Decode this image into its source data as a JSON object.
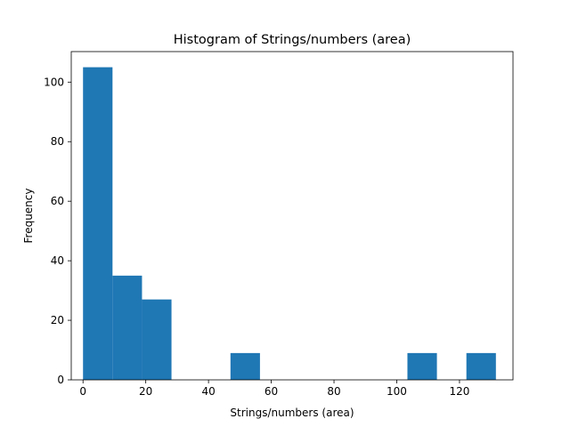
{
  "chart_data": {
    "type": "bar",
    "title": "Histogram of Strings/numbers (area)",
    "xlabel": "Strings/numbers (area)",
    "ylabel": "Frequency",
    "bar_color": "#1f77b4",
    "xlim": [
      -3.75,
      137.05
    ],
    "ylim": [
      0,
      110.25
    ],
    "xticks": [
      0,
      20,
      40,
      60,
      80,
      100,
      120
    ],
    "yticks": [
      0,
      20,
      40,
      60,
      80,
      100
    ],
    "bin_edges": [
      0,
      9.4,
      18.8,
      28.2,
      37.6,
      47.0,
      56.4,
      65.8,
      75.2,
      84.6,
      94.0,
      103.4,
      112.8,
      122.2,
      131.6
    ],
    "values": [
      105,
      35,
      27,
      0,
      0,
      9,
      0,
      0,
      0,
      0,
      0,
      9,
      0,
      9
    ],
    "grid": false,
    "legend": "none"
  }
}
